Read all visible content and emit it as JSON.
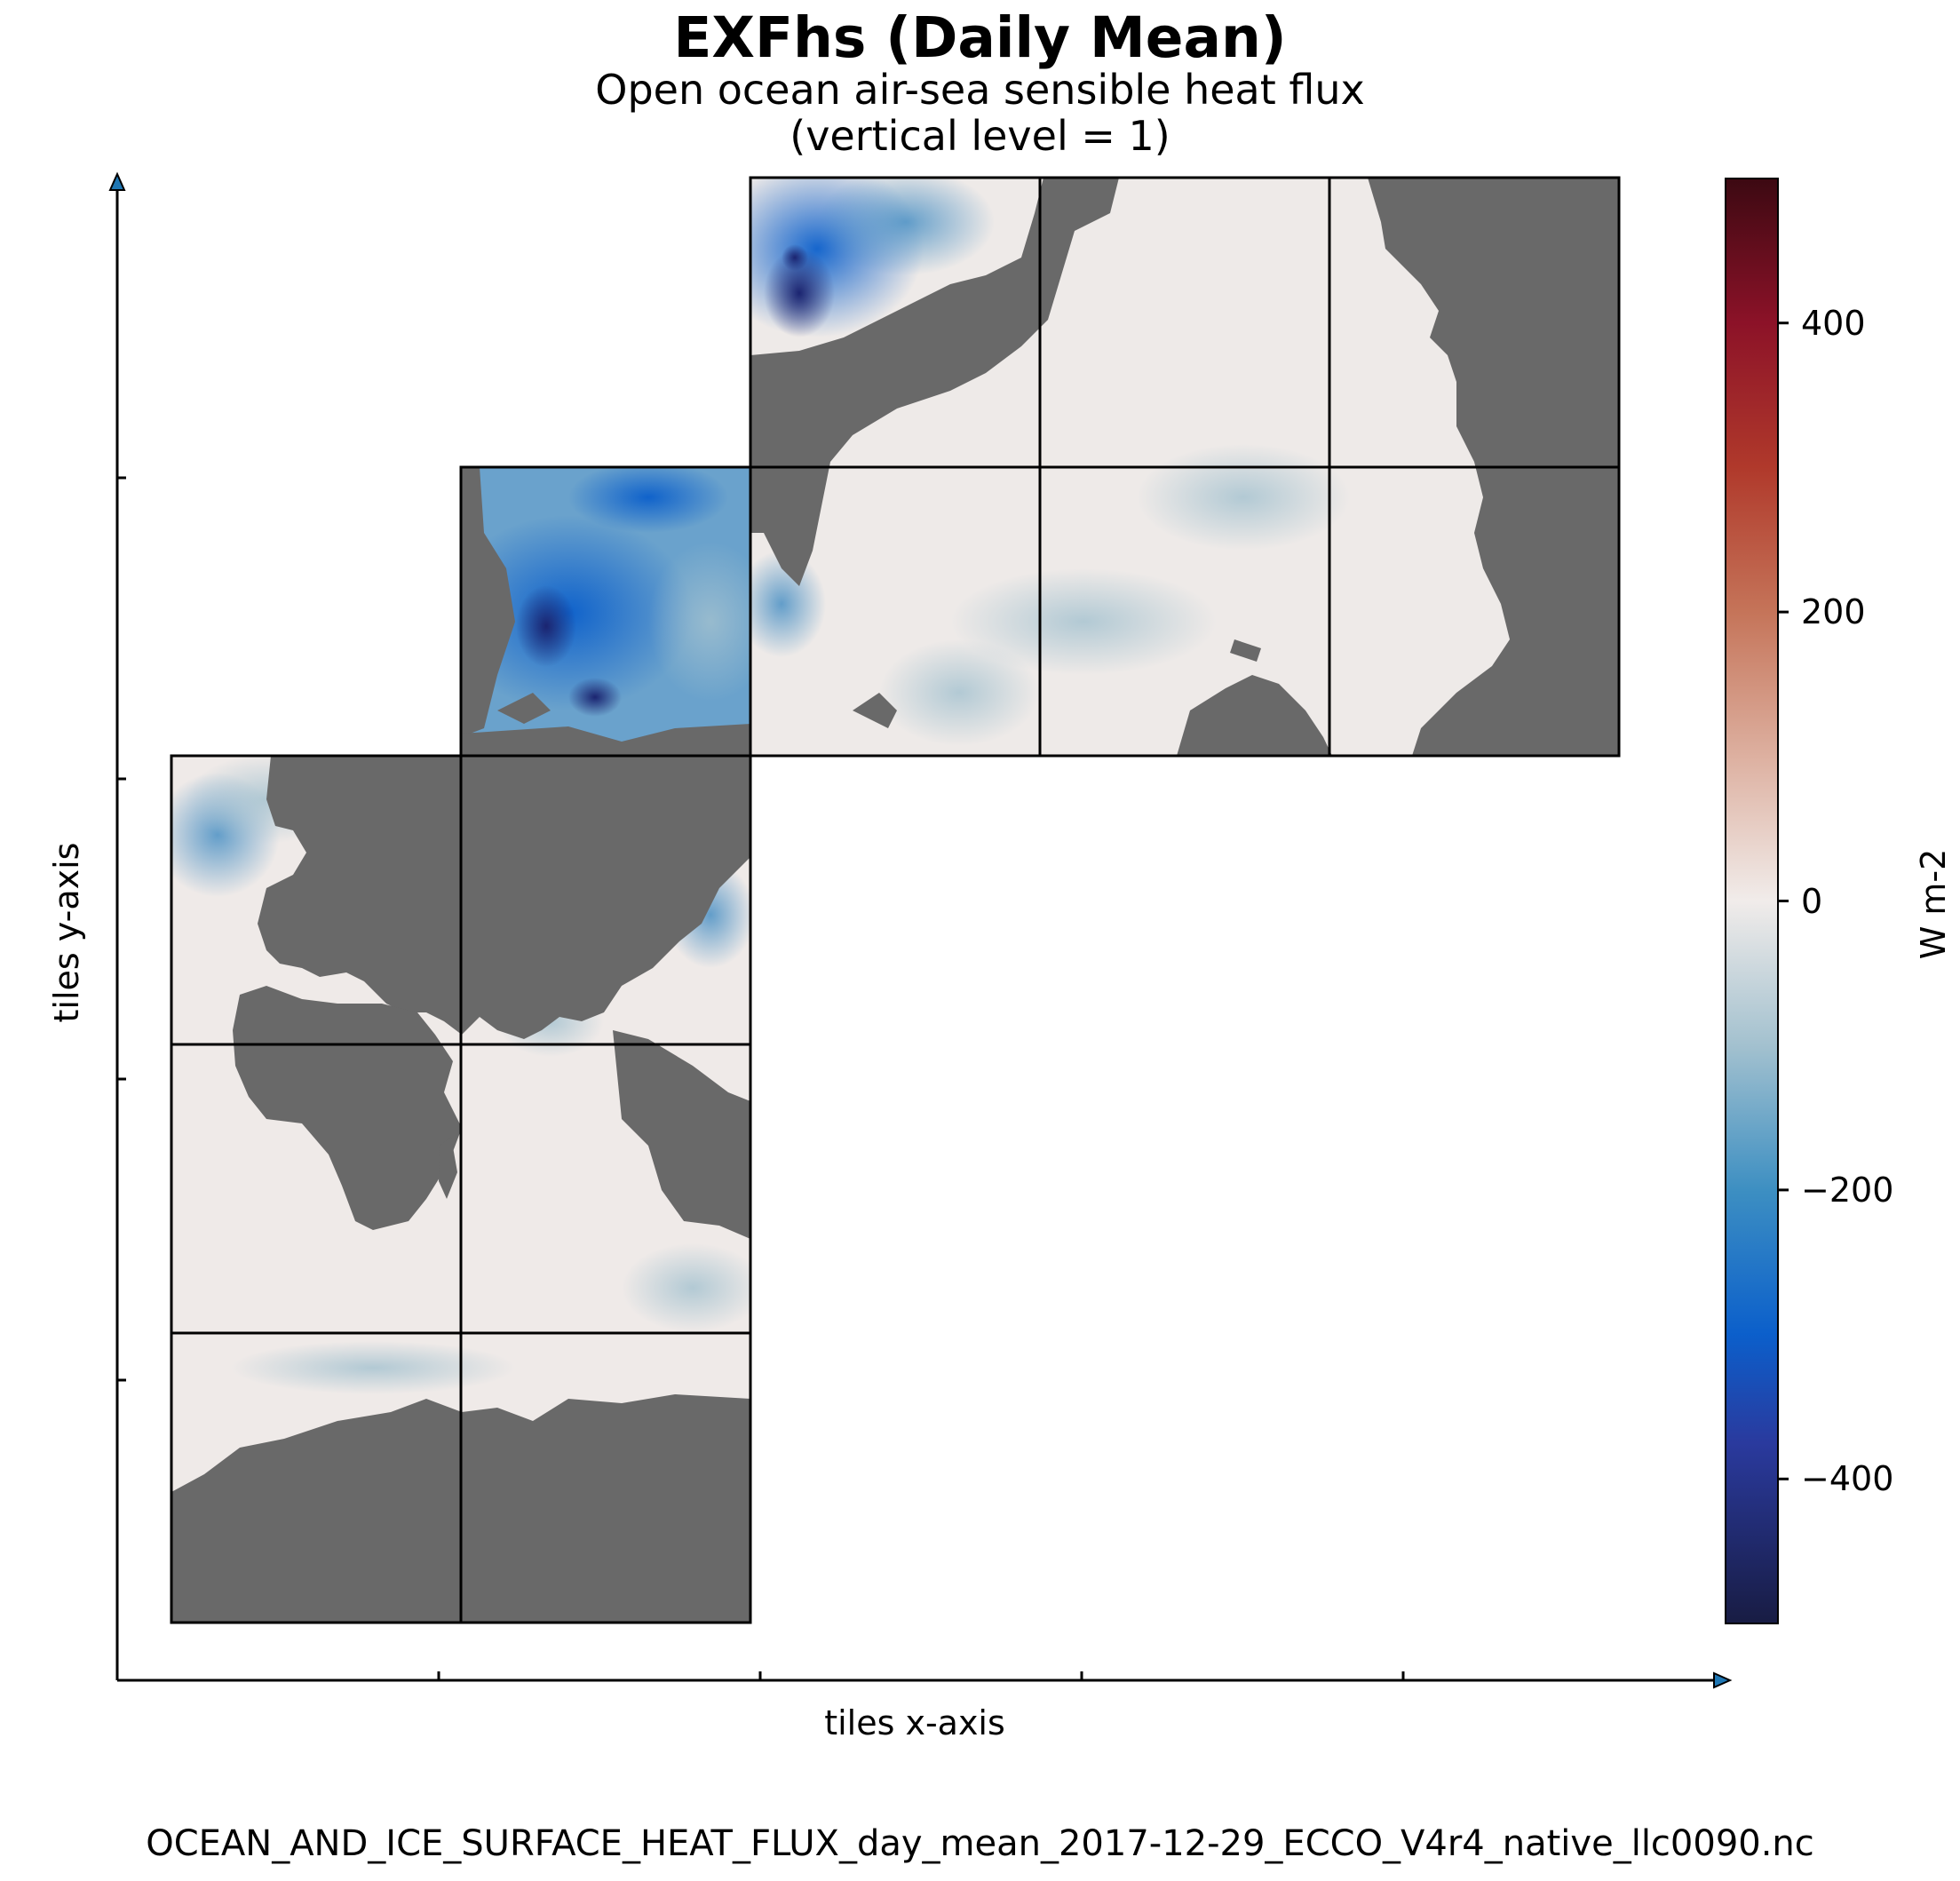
{
  "chart_data": {
    "type": "heatmap",
    "title": "EXFhs (Daily Mean)",
    "subtitle": "Open ocean air-sea sensible heat flux",
    "subtitle_2": "(vertical level = 1)",
    "xlabel": "tiles x-axis",
    "ylabel": "tiles y-axis",
    "colorbar": {
      "label": "W m-2",
      "range": [
        -500,
        500
      ],
      "ticks": [
        400,
        200,
        0,
        -200,
        -400
      ],
      "tick_labels": [
        "400",
        "200",
        "0",
        "−200",
        "−400"
      ],
      "colormap": "balance",
      "stops": [
        {
          "value": -500,
          "color": "#181c43"
        },
        {
          "value": -375,
          "color": "#2a3a9e"
        },
        {
          "value": -300,
          "color": "#0b5fcb"
        },
        {
          "value": -200,
          "color": "#3d8fc2"
        },
        {
          "value": -100,
          "color": "#a3c1cf"
        },
        {
          "value": 0,
          "color": "#f1ecea"
        },
        {
          "value": 100,
          "color": "#ddb0a0"
        },
        {
          "value": 200,
          "color": "#c57459"
        },
        {
          "value": 300,
          "color": "#b0392b"
        },
        {
          "value": 400,
          "color": "#8c1228"
        },
        {
          "value": 500,
          "color": "#3c0912"
        }
      ]
    },
    "land_color": "#696969",
    "tile_layout": "LLC90 native grid, 13 tiles arranged as 3-by-3 blocks in a staircase (cols 0-4, rows 0-4)",
    "footer": "OCEAN_AND_ICE_SURFACE_HEAT_FLUX_day_mean_2017-12-29_ECCO_V4r4_native_llc0090.nc"
  }
}
